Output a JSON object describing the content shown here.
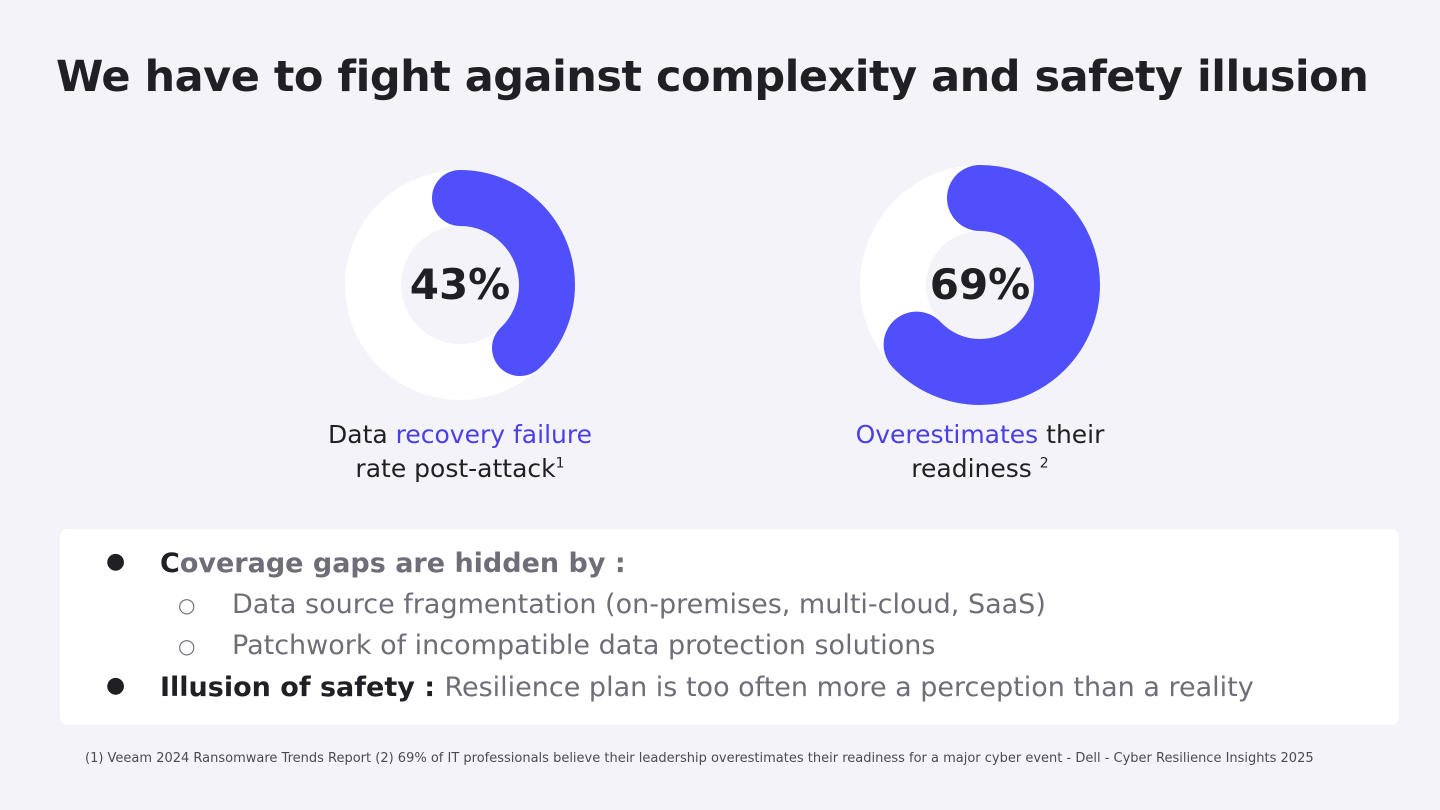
{
  "title": "We have to fight against complexity and safety illusion",
  "stats": [
    {
      "value_label": "43%",
      "percent": 43,
      "caption_pre": "Data ",
      "caption_highlight": "recovery failure",
      "caption_post": "",
      "caption_line2": "rate post-attack",
      "footnote_ref": "1"
    },
    {
      "value_label": "69%",
      "percent": 69,
      "caption_pre": "",
      "caption_highlight": "Overestimates",
      "caption_post": " their",
      "caption_line2": "readiness ",
      "footnote_ref": "2"
    }
  ],
  "bullets": {
    "coverage_first_letter": "C",
    "coverage_rest": "overage gaps are hidden by :",
    "sub_items": [
      "Data source fragmentation (on-premises, multi-cloud, SaaS)",
      "Patchwork of incompatible data protection solutions"
    ],
    "illusion_label": "Illusion of safety : ",
    "illusion_text": "Resilience plan is too often more a perception than a reality",
    "bullet_glyph": "●",
    "sub_bullet_glyph": "○"
  },
  "footnote": "(1) Veeam 2024 Ransomware Trends Report (2) 69% of IT professionals believe their leadership overestimates their readiness for a major cyber event - Dell - Cyber Resilience Insights 2025",
  "colors": {
    "accent": "#4f4ffb",
    "accent_text": "#4a3fe6",
    "track": "#ffffff",
    "background": "#f3f3f9"
  }
}
